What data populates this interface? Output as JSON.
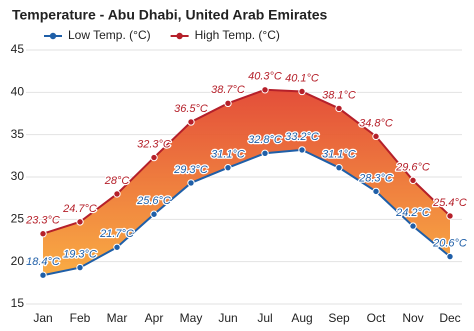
{
  "chart_data": {
    "type": "line",
    "title": "Temperature - Abu Dhabi, United Arab Emirates",
    "categories": [
      "Jan",
      "Feb",
      "Mar",
      "Apr",
      "May",
      "Jun",
      "Jul",
      "Aug",
      "Sep",
      "Oct",
      "Nov",
      "Dec"
    ],
    "series": [
      {
        "name": "Low Temp. (°C)",
        "color": "#1f5fa8",
        "values": [
          18.4,
          19.3,
          21.7,
          25.6,
          29.3,
          31.1,
          32.8,
          33.2,
          31.1,
          28.3,
          24.2,
          20.6
        ],
        "value_labels": [
          "18.4°C",
          "19.3°C",
          "21.7°C",
          "25.6°C",
          "29.3°C",
          "31.1°C",
          "32.8°C",
          "33.2°C",
          "31.1°C",
          "28.3°C",
          "24.2°C",
          "20.6°C"
        ]
      },
      {
        "name": "High Temp. (°C)",
        "color": "#b5202a",
        "values": [
          23.3,
          24.7,
          28,
          32.3,
          36.5,
          38.7,
          40.3,
          40.1,
          38.1,
          34.8,
          29.6,
          25.4
        ],
        "value_labels": [
          "23.3°C",
          "24.7°C",
          "28°C",
          "32.3°C",
          "36.5°C",
          "38.7°C",
          "40.3°C",
          "40.1°C",
          "38.1°C",
          "34.8°C",
          "29.6°C",
          "25.4°C"
        ]
      }
    ],
    "ylim": [
      15,
      45
    ],
    "yticks": [
      15,
      20,
      25,
      30,
      35,
      40,
      45
    ],
    "grid": true,
    "legend": "top-left"
  }
}
